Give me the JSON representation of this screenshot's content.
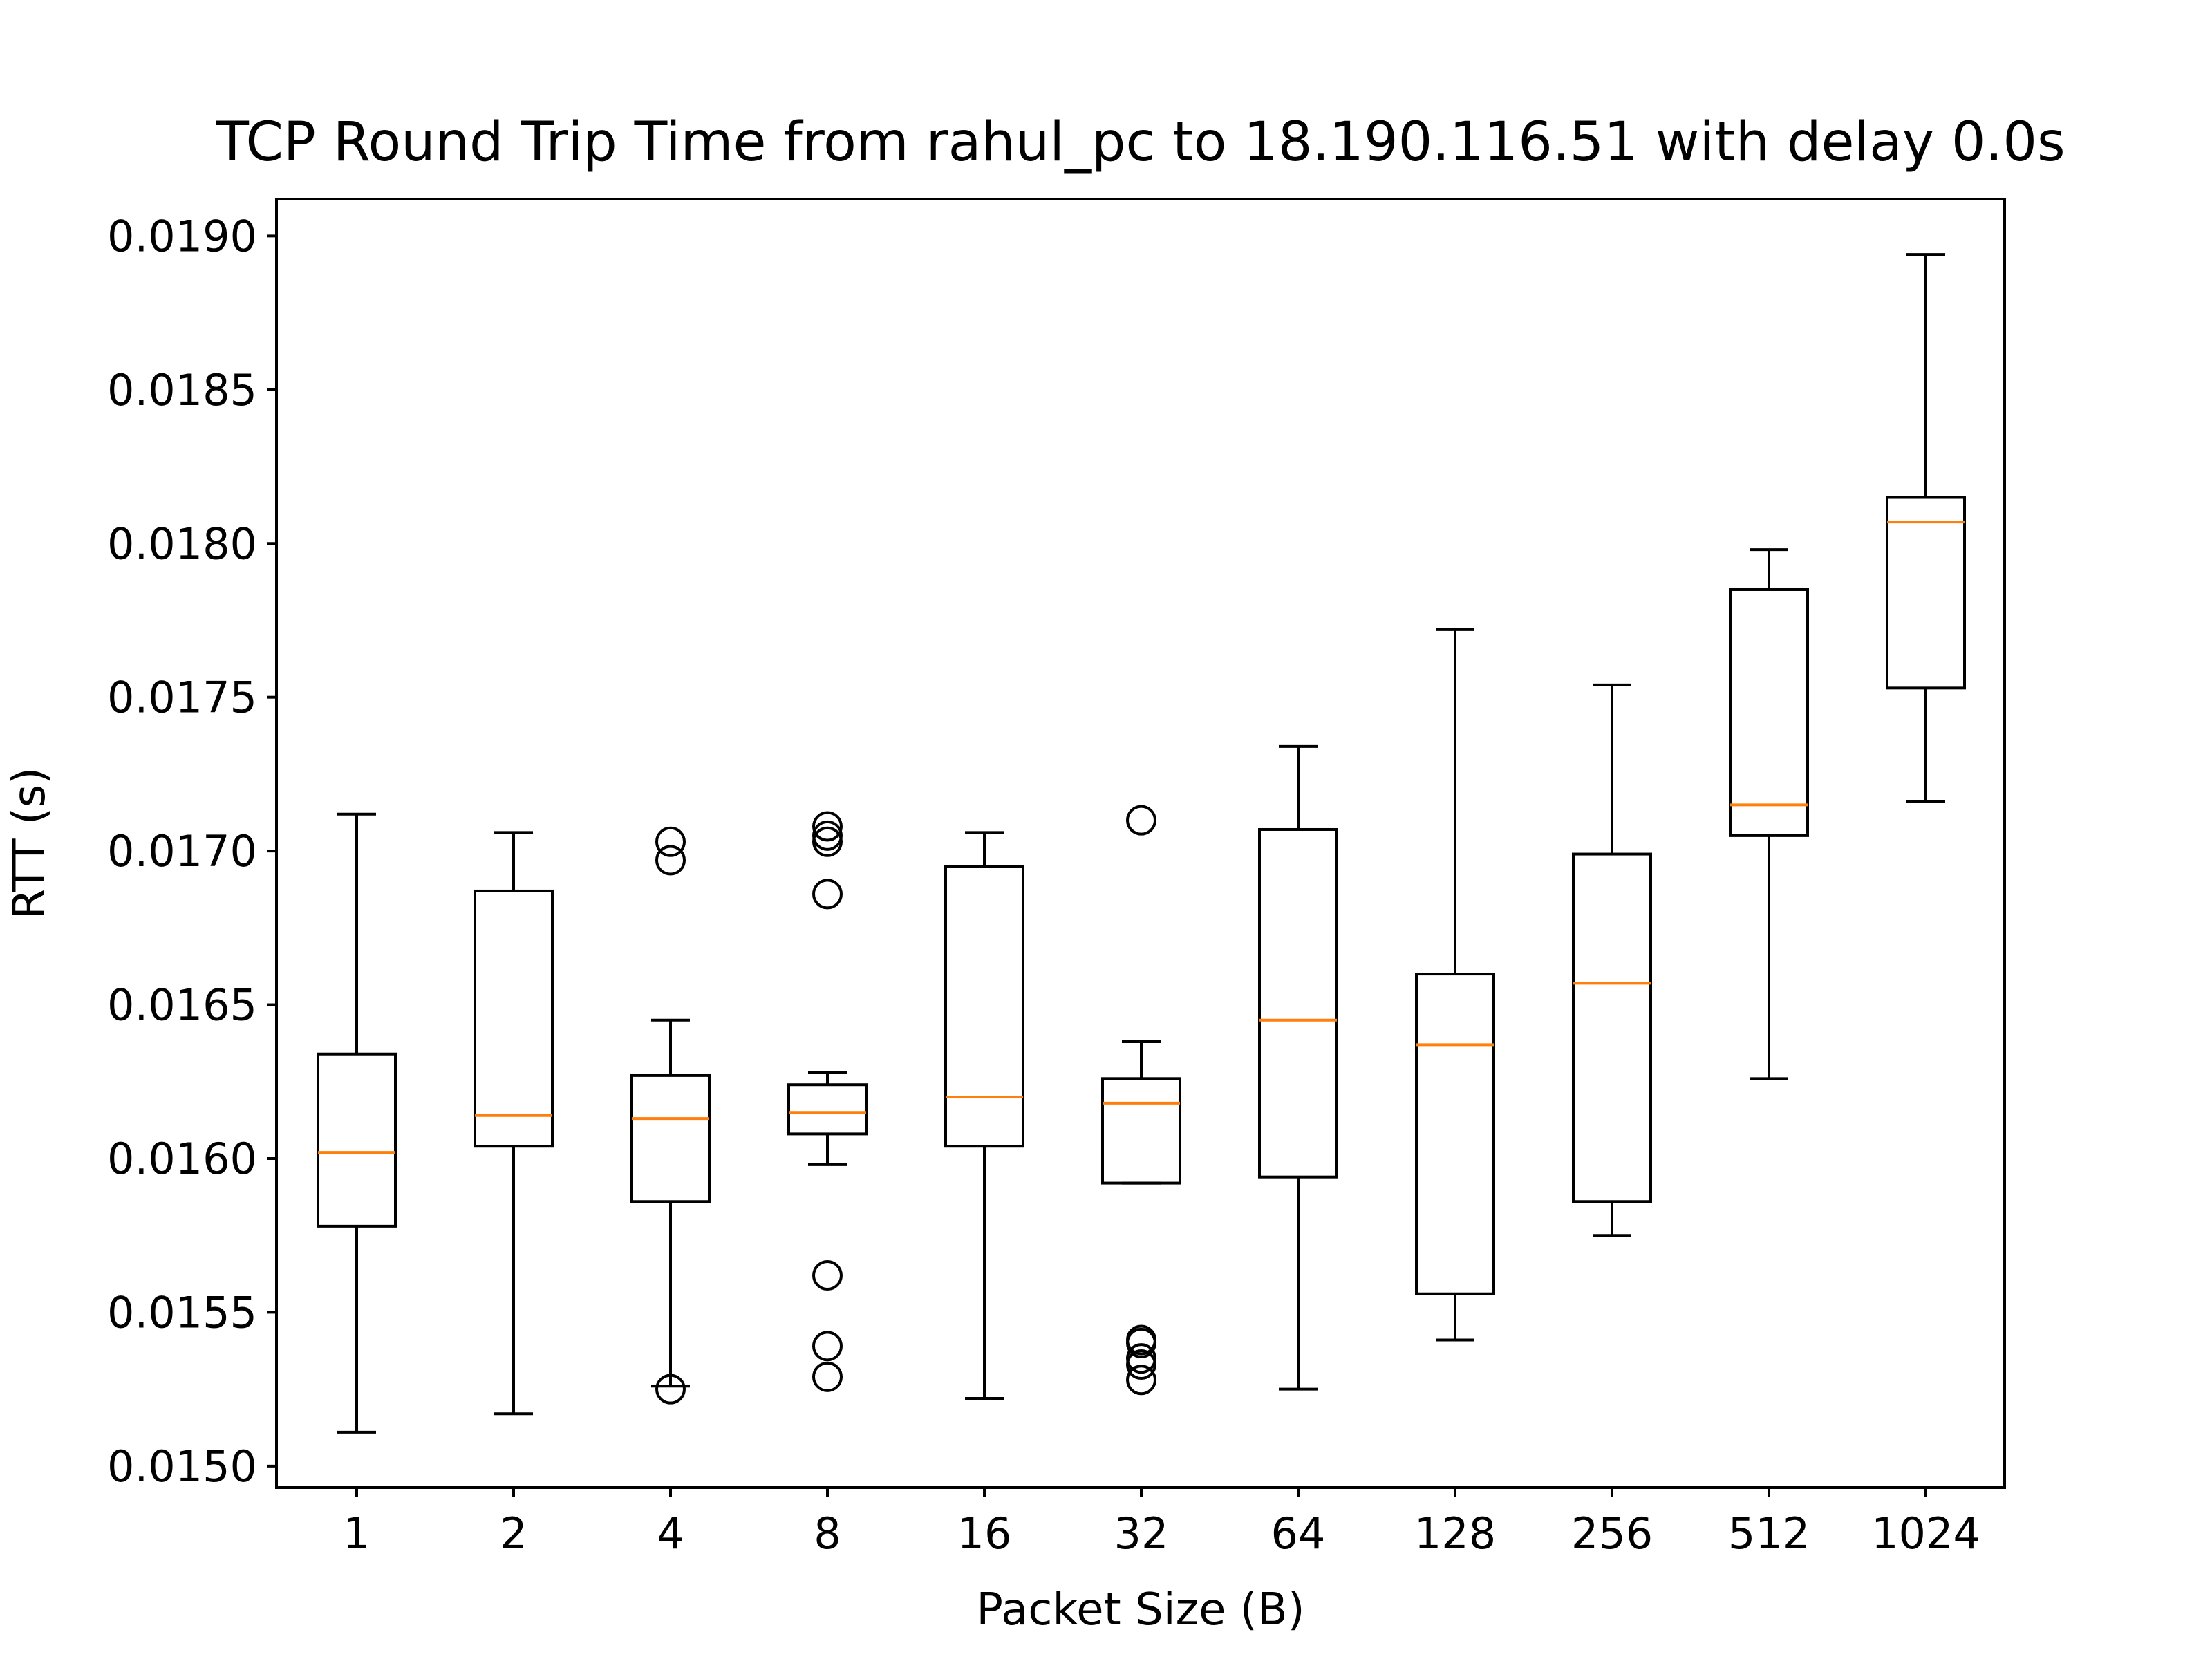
{
  "chart_data": {
    "type": "box",
    "title": "TCP Round Trip Time from rahul_pc to 18.190.116.51 with delay 0.0s",
    "xlabel": "Packet Size (B)",
    "ylabel": "RTT (s)",
    "ylim": [
      0.01493,
      0.01912
    ],
    "yticks": [
      "0.0150",
      "0.0155",
      "0.0160",
      "0.0165",
      "0.0170",
      "0.0175",
      "0.0180",
      "0.0185",
      "0.0190"
    ],
    "ytick_values": [
      0.015,
      0.0155,
      0.016,
      0.0165,
      0.017,
      0.0175,
      0.018,
      0.0185,
      0.019
    ],
    "categories": [
      "1",
      "2",
      "4",
      "8",
      "16",
      "32",
      "64",
      "128",
      "256",
      "512",
      "1024"
    ],
    "grid": false,
    "colors": {
      "box": "#000000",
      "median": "#ff7f0e",
      "flier": "#000000"
    },
    "boxes": [
      {
        "category": "1",
        "whislo": 0.01511,
        "q1": 0.01578,
        "med": 0.01602,
        "q3": 0.01634,
        "whishi": 0.01712,
        "fliers": []
      },
      {
        "category": "2",
        "whislo": 0.01517,
        "q1": 0.01604,
        "med": 0.01614,
        "q3": 0.01687,
        "whishi": 0.01706,
        "fliers": []
      },
      {
        "category": "4",
        "whislo": 0.01526,
        "q1": 0.01586,
        "med": 0.01613,
        "q3": 0.01627,
        "whishi": 0.01645,
        "fliers": [
          0.01703,
          0.01697,
          0.01525
        ]
      },
      {
        "category": "8",
        "whislo": 0.01598,
        "q1": 0.01608,
        "med": 0.01615,
        "q3": 0.01624,
        "whishi": 0.01628,
        "fliers": [
          0.01708,
          0.01705,
          0.01703,
          0.01686,
          0.01562,
          0.01539,
          0.01529
        ]
      },
      {
        "category": "16",
        "whislo": 0.01522,
        "q1": 0.01604,
        "med": 0.0162,
        "q3": 0.01695,
        "whishi": 0.01706,
        "fliers": []
      },
      {
        "category": "32",
        "whislo": 0.01592,
        "q1": 0.01592,
        "med": 0.01618,
        "q3": 0.01626,
        "whishi": 0.01638,
        "fliers": [
          0.0171,
          0.01541,
          0.0154,
          0.01535,
          0.01533,
          0.01528
        ]
      },
      {
        "category": "64",
        "whislo": 0.01525,
        "q1": 0.01594,
        "med": 0.01645,
        "q3": 0.01707,
        "whishi": 0.01734,
        "fliers": []
      },
      {
        "category": "128",
        "whislo": 0.01541,
        "q1": 0.01556,
        "med": 0.01637,
        "q3": 0.0166,
        "whishi": 0.01772,
        "fliers": []
      },
      {
        "category": "256",
        "whislo": 0.01575,
        "q1": 0.01586,
        "med": 0.01657,
        "q3": 0.01699,
        "whishi": 0.01754,
        "fliers": []
      },
      {
        "category": "512",
        "whislo": 0.01626,
        "q1": 0.01705,
        "med": 0.01715,
        "q3": 0.01785,
        "whishi": 0.01798,
        "fliers": []
      },
      {
        "category": "1024",
        "whislo": 0.01716,
        "q1": 0.01753,
        "med": 0.01807,
        "q3": 0.01815,
        "whishi": 0.01894,
        "fliers": []
      }
    ]
  }
}
